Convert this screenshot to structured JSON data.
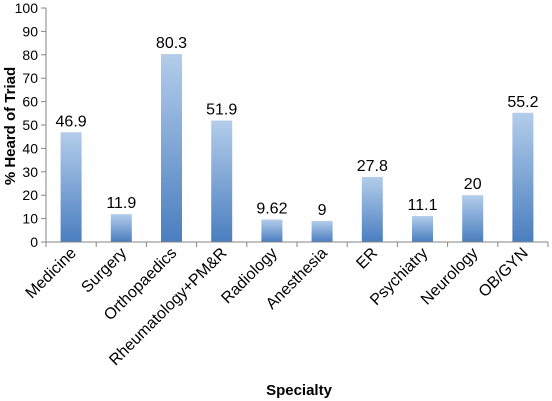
{
  "chart_data": {
    "type": "bar",
    "categories": [
      "Medicine",
      "Surgery",
      "Orthopaedics",
      "Rheumatology+PM&R",
      "Radiology",
      "Anesthesia",
      "ER",
      "Psychiatry",
      "Neurology",
      "OB/GYN"
    ],
    "values": [
      46.9,
      11.9,
      80.3,
      51.9,
      9.62,
      9,
      27.8,
      11.1,
      20,
      55.2
    ],
    "data_labels": [
      "46.9",
      "11.9",
      "80.3",
      "51.9",
      "9.62",
      "9",
      "27.8",
      "11.1",
      "20",
      "55.2"
    ],
    "title": "",
    "xlabel": "Specialty",
    "ylabel": "% Heard of Triad",
    "ylim": [
      0,
      100
    ],
    "yticks": [
      0,
      10,
      20,
      30,
      40,
      50,
      60,
      70,
      80,
      90,
      100
    ],
    "grid": false,
    "legend": "none",
    "bar_color_top": "#B3CDEB",
    "bar_color_bottom": "#4A7EBF",
    "axis_color": "#868686"
  }
}
